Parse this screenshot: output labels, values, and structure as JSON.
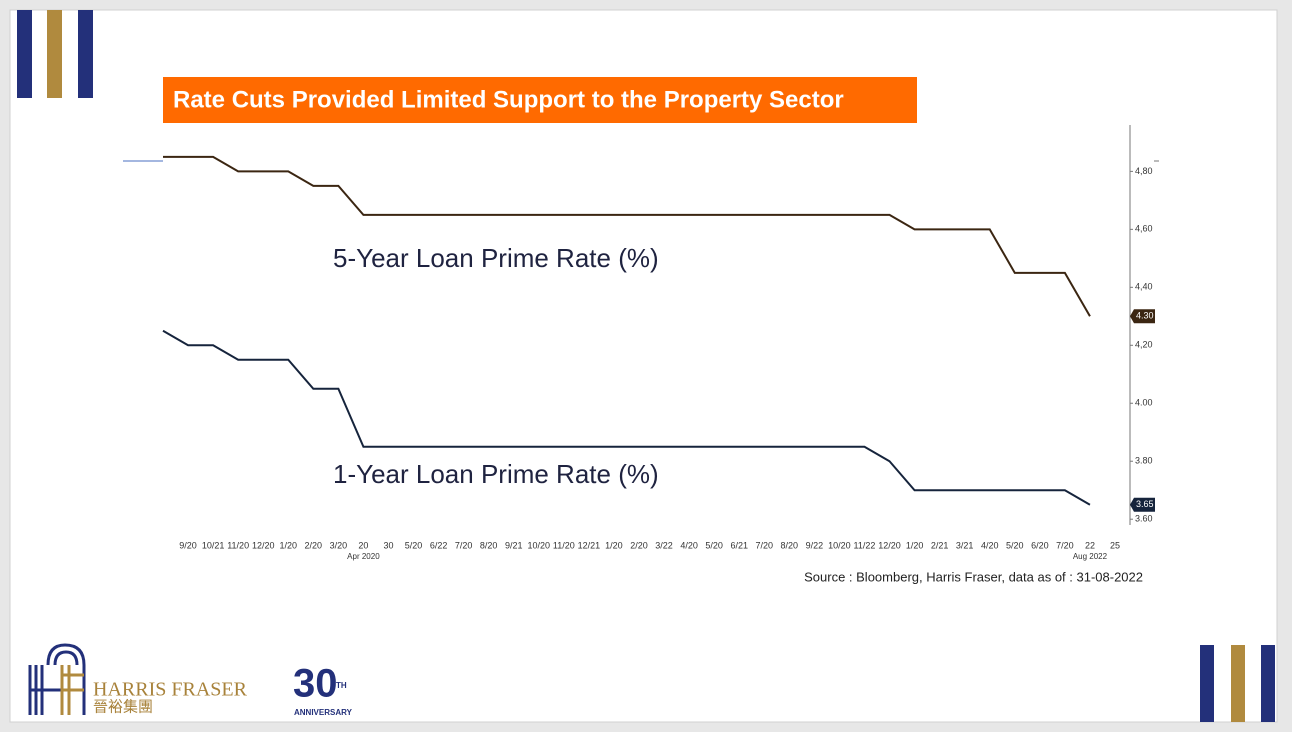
{
  "chart_data": {
    "type": "line",
    "title": "Rate Cuts Provided Limited Support to the Property Sector",
    "annotations": [
      "5-Year Loan Prime Rate (%)",
      "1-Year Loan Prime Rate (%)"
    ],
    "source": "Source : Bloomberg, Harris Fraser, data as of : 31-08-2022",
    "xlim": [
      -1,
      37
    ],
    "xticks": [
      {
        "value": 0,
        "label": "9/20"
      },
      {
        "value": 1,
        "label": "10/21"
      },
      {
        "value": 2,
        "label": "11/20"
      },
      {
        "value": 3,
        "label": "12/20"
      },
      {
        "value": 4,
        "label": "1/20"
      },
      {
        "value": 5,
        "label": "2/20"
      },
      {
        "value": 6,
        "label": "3/20"
      },
      {
        "value": 7,
        "label": "20"
      },
      {
        "value": 8,
        "label": "30"
      },
      {
        "value": 9,
        "label": "5/20"
      },
      {
        "value": 10,
        "label": "6/22"
      },
      {
        "value": 11,
        "label": "7/20"
      },
      {
        "value": 12,
        "label": "8/20"
      },
      {
        "value": 13,
        "label": "9/21"
      },
      {
        "value": 14,
        "label": "10/20"
      },
      {
        "value": 15,
        "label": "11/20"
      },
      {
        "value": 16,
        "label": "12/21"
      },
      {
        "value": 17,
        "label": "1/20"
      },
      {
        "value": 18,
        "label": "2/20"
      },
      {
        "value": 19,
        "label": "3/22"
      },
      {
        "value": 20,
        "label": "4/20"
      },
      {
        "value": 21,
        "label": "5/20"
      },
      {
        "value": 22,
        "label": "6/21"
      },
      {
        "value": 23,
        "label": "7/20"
      },
      {
        "value": 24,
        "label": "8/20"
      },
      {
        "value": 25,
        "label": "9/22"
      },
      {
        "value": 26,
        "label": "10/20"
      },
      {
        "value": 27,
        "label": "11/22"
      },
      {
        "value": 28,
        "label": "12/20"
      },
      {
        "value": 29,
        "label": "1/20"
      },
      {
        "value": 30,
        "label": "2/21"
      },
      {
        "value": 31,
        "label": "3/21"
      },
      {
        "value": 32,
        "label": "4/20"
      },
      {
        "value": 33,
        "label": "5/20"
      },
      {
        "value": 34,
        "label": "6/20"
      },
      {
        "value": 35,
        "label": "7/20"
      },
      {
        "value": 36,
        "label": "22"
      },
      {
        "value": 37,
        "label": "25"
      }
    ],
    "x_sublabels": [
      null,
      null,
      null,
      null,
      null,
      null,
      null,
      "Apr 2020",
      null,
      null,
      null,
      null,
      null,
      null,
      null,
      null,
      null,
      null,
      null,
      null,
      null,
      null,
      null,
      null,
      null,
      null,
      null,
      null,
      null,
      null,
      null,
      null,
      null,
      null,
      null,
      null,
      "Aug 2022",
      null
    ],
    "ylim": [
      3.58,
      4.96
    ],
    "yticks": [
      {
        "value": 3.6,
        "label": "3.60"
      },
      {
        "value": 3.8,
        "label": "3.80"
      },
      {
        "value": 4.0,
        "label": "4.00"
      },
      {
        "value": 4.2,
        "label": "4,20"
      },
      {
        "value": 4.4,
        "label": "4,40"
      },
      {
        "value": 4.6,
        "label": "4,60"
      },
      {
        "value": 4.8,
        "label": "4,80"
      }
    ],
    "series": [
      {
        "color": "#3b2612",
        "x": [
          -1,
          1,
          2,
          4,
          5,
          6,
          7,
          28,
          29,
          32,
          33,
          35,
          36
        ],
        "values": [
          4.85,
          4.85,
          4.8,
          4.8,
          4.75,
          4.75,
          4.65,
          4.65,
          4.6,
          4.6,
          4.45,
          4.45,
          4.3
        ],
        "value_labels": [
          null,
          null,
          null,
          null,
          null,
          null,
          null,
          null,
          null,
          null,
          null,
          null,
          "4.30"
        ]
      },
      {
        "color": "#16243c",
        "x": [
          -1,
          0,
          1,
          2,
          4,
          5,
          6,
          7,
          27,
          28,
          29,
          35,
          36
        ],
        "values": [
          4.25,
          4.2,
          4.2,
          4.15,
          4.15,
          4.05,
          4.05,
          3.85,
          3.85,
          3.8,
          3.7,
          3.7,
          3.65
        ],
        "value_labels": [
          null,
          null,
          null,
          null,
          null,
          null,
          null,
          null,
          null,
          null,
          null,
          null,
          "3.65"
        ]
      }
    ]
  },
  "branding": {
    "name": "HARRIS FRASER",
    "chinese": "晉裕集團",
    "anniversary_number": "30",
    "anniversary_suffix": "TH",
    "anniversary_word": "ANNIVERSARY"
  }
}
